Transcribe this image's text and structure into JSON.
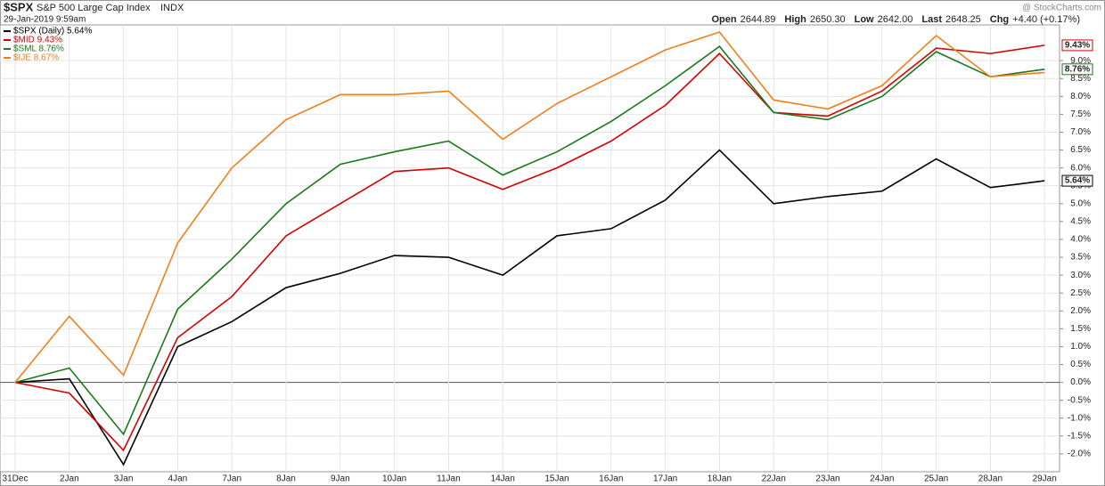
{
  "chart_data": {
    "type": "line",
    "title": "$SPX",
    "subtitle": "S&P 500 Large Cap Index",
    "exchange": "INDX",
    "date": "29-Jan-2019 9:59am",
    "watermark": "@ StockCharts.com",
    "quote": [
      {
        "label": "Open",
        "value": "2644.89"
      },
      {
        "label": "High",
        "value": "2650.30"
      },
      {
        "label": "Low",
        "value": "2642.00"
      },
      {
        "label": "Last",
        "value": "2648.25"
      },
      {
        "label": "Chg",
        "value": "+4.40 (+0.17%)"
      }
    ],
    "categories": [
      "31Dec",
      "2Jan",
      "3Jan",
      "4Jan",
      "7Jan",
      "8Jan",
      "9Jan",
      "10Jan",
      "11Jan",
      "14Jan",
      "15Jan",
      "16Jan",
      "17Jan",
      "18Jan",
      "22Jan",
      "23Jan",
      "24Jan",
      "25Jan",
      "28Jan",
      "29Jan"
    ],
    "series": [
      {
        "name": "$SPX (Daily) 5.64%",
        "color": "#000000",
        "values": [
          0,
          0.1,
          -2.3,
          1.0,
          1.7,
          2.65,
          3.05,
          3.55,
          3.5,
          3.0,
          4.1,
          4.3,
          5.1,
          6.5,
          5.0,
          5.2,
          5.35,
          6.25,
          5.45,
          5.64
        ],
        "value_labels": [
          null,
          null,
          null,
          null,
          null,
          null,
          null,
          null,
          null,
          null,
          null,
          null,
          null,
          null,
          null,
          null,
          null,
          null,
          null,
          "5.64%"
        ]
      },
      {
        "name": "$MID 9.43%",
        "color": "#d40000",
        "values": [
          0,
          -0.3,
          -1.9,
          1.25,
          2.4,
          4.1,
          5.0,
          5.9,
          6.0,
          5.4,
          6.0,
          6.75,
          7.75,
          9.2,
          7.55,
          7.45,
          8.15,
          9.35,
          9.2,
          9.43
        ],
        "value_labels": [
          null,
          null,
          null,
          null,
          null,
          null,
          null,
          null,
          null,
          null,
          null,
          null,
          null,
          null,
          null,
          null,
          null,
          null,
          null,
          "9.43%"
        ]
      },
      {
        "name": "$SML 8.76%",
        "color": "#1a7a1a",
        "values": [
          0,
          0.4,
          -1.45,
          2.05,
          3.45,
          5.0,
          6.1,
          6.45,
          6.75,
          5.8,
          6.45,
          7.3,
          8.3,
          9.4,
          7.55,
          7.35,
          8.0,
          9.25,
          8.55,
          8.76
        ],
        "value_labels": [
          null,
          null,
          null,
          null,
          null,
          null,
          null,
          null,
          null,
          null,
          null,
          null,
          null,
          null,
          null,
          null,
          null,
          null,
          null,
          "8.76%"
        ]
      },
      {
        "name": "$IJE 8.67%",
        "color": "#f07f1a",
        "values": [
          0,
          1.85,
          0.2,
          3.9,
          6.0,
          7.35,
          8.05,
          8.05,
          8.15,
          6.8,
          7.8,
          8.55,
          9.3,
          9.8,
          7.9,
          7.65,
          8.3,
          9.7,
          8.55,
          8.67
        ]
      }
    ],
    "ylim": [
      -2.5,
      10
    ],
    "yticks": [
      {
        "value": -2,
        "label": "-2.0%"
      },
      {
        "value": -1.5,
        "label": "-1.5%"
      },
      {
        "value": -1,
        "label": "-1.0%"
      },
      {
        "value": -0.5,
        "label": "-0.5%"
      },
      {
        "value": 0,
        "label": "0.0%"
      },
      {
        "value": 0.5,
        "label": "0.5%"
      },
      {
        "value": 1,
        "label": "1.0%"
      },
      {
        "value": 1.5,
        "label": "1.5%"
      },
      {
        "value": 2,
        "label": "2.0%"
      },
      {
        "value": 2.5,
        "label": "2.5%"
      },
      {
        "value": 3,
        "label": "3.0%"
      },
      {
        "value": 3.5,
        "label": "3.5%"
      },
      {
        "value": 4,
        "label": "4.0%"
      },
      {
        "value": 4.5,
        "label": "4.5%"
      },
      {
        "value": 5,
        "label": "5.0%"
      },
      {
        "value": 5.5,
        "label": "5.5%"
      },
      {
        "value": 6,
        "label": "6.0%"
      },
      {
        "value": 6.5,
        "label": "6.5%"
      },
      {
        "value": 7,
        "label": "7.0%"
      },
      {
        "value": 7.5,
        "label": "7.5%"
      },
      {
        "value": 8,
        "label": "8.0%"
      },
      {
        "value": 8.5,
        "label": "8.5%"
      },
      {
        "value": 9,
        "label": "9.0%"
      }
    ],
    "grid": true
  }
}
